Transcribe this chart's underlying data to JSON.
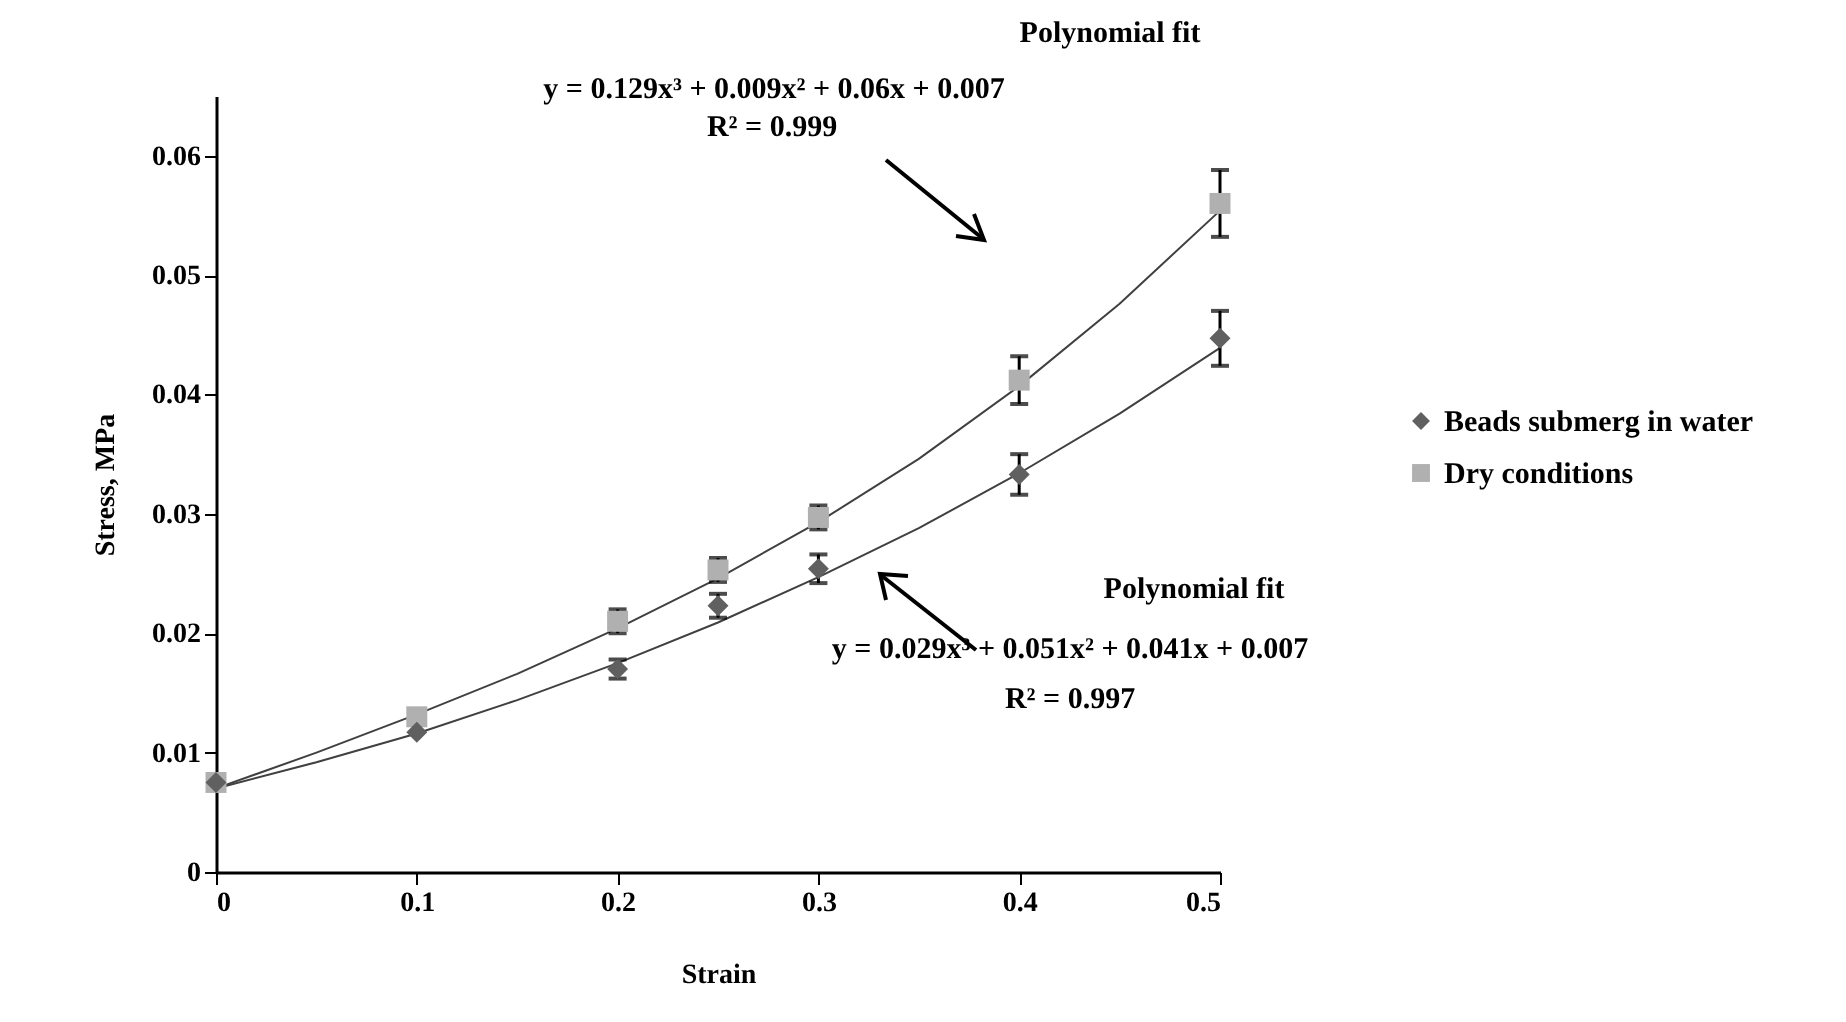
{
  "chart_data": {
    "type": "scatter",
    "xlabel": "Strain",
    "ylabel": "Stress, MPa",
    "xlim": [
      0,
      0.5
    ],
    "ylim": [
      0,
      0.065
    ],
    "xticks": [
      0,
      0.1,
      0.2,
      0.3,
      0.4,
      0.5
    ],
    "yticks": [
      0,
      0.01,
      0.02,
      0.03,
      0.04,
      0.05,
      0.06
    ],
    "legend": "right",
    "series": [
      {
        "type": "line",
        "color": "#404040",
        "x": [
          0,
          0.05,
          0.1,
          0.15,
          0.2,
          0.25,
          0.3,
          0.35,
          0.4,
          0.45,
          0.5
        ],
        "values": [
          0.007,
          0.0092,
          0.0116,
          0.0144,
          0.0175,
          0.0209,
          0.0247,
          0.0288,
          0.0334,
          0.0384,
          0.0439
        ]
      },
      {
        "type": "line",
        "color": "#404040",
        "x": [
          0,
          0.05,
          0.1,
          0.15,
          0.2,
          0.25,
          0.3,
          0.35,
          0.4,
          0.45,
          0.5
        ],
        "values": [
          0.007,
          0.01,
          0.0132,
          0.0166,
          0.0204,
          0.0246,
          0.0293,
          0.0346,
          0.0407,
          0.0476,
          0.0554
        ]
      },
      {
        "type": "scatter",
        "name": "Beads submerg in water",
        "color": "#606060",
        "marker": "diamond",
        "x": [
          0,
          0.1,
          0.2,
          0.25,
          0.3,
          0.4,
          0.5
        ],
        "values": [
          0.0075,
          0.0117,
          0.017,
          0.0223,
          0.0254,
          0.0333,
          0.0447
        ],
        "errors": [
          null,
          null,
          0.0008,
          0.001,
          0.0012,
          0.0017,
          0.0023
        ]
      },
      {
        "type": "scatter",
        "name": "Dry conditions",
        "color": "#b0b0b0",
        "marker": "square",
        "x": [
          0,
          0.1,
          0.2,
          0.25,
          0.3,
          0.4,
          0.5
        ],
        "values": [
          0.0075,
          0.013,
          0.021,
          0.0253,
          0.0297,
          0.0412,
          0.056
        ],
        "errors": [
          null,
          null,
          0.001,
          0.001,
          0.001,
          0.002,
          0.0028
        ]
      }
    ],
    "annotations": [
      "Polynomial fit",
      "y = 0.129x³ + 0.009x² + 0.06x + 0.007",
      "R² = 0.999",
      "Polynomial fit",
      "y = 0.029x³ + 0.051x² + 0.041x + 0.007",
      "R² = 0.997"
    ]
  }
}
